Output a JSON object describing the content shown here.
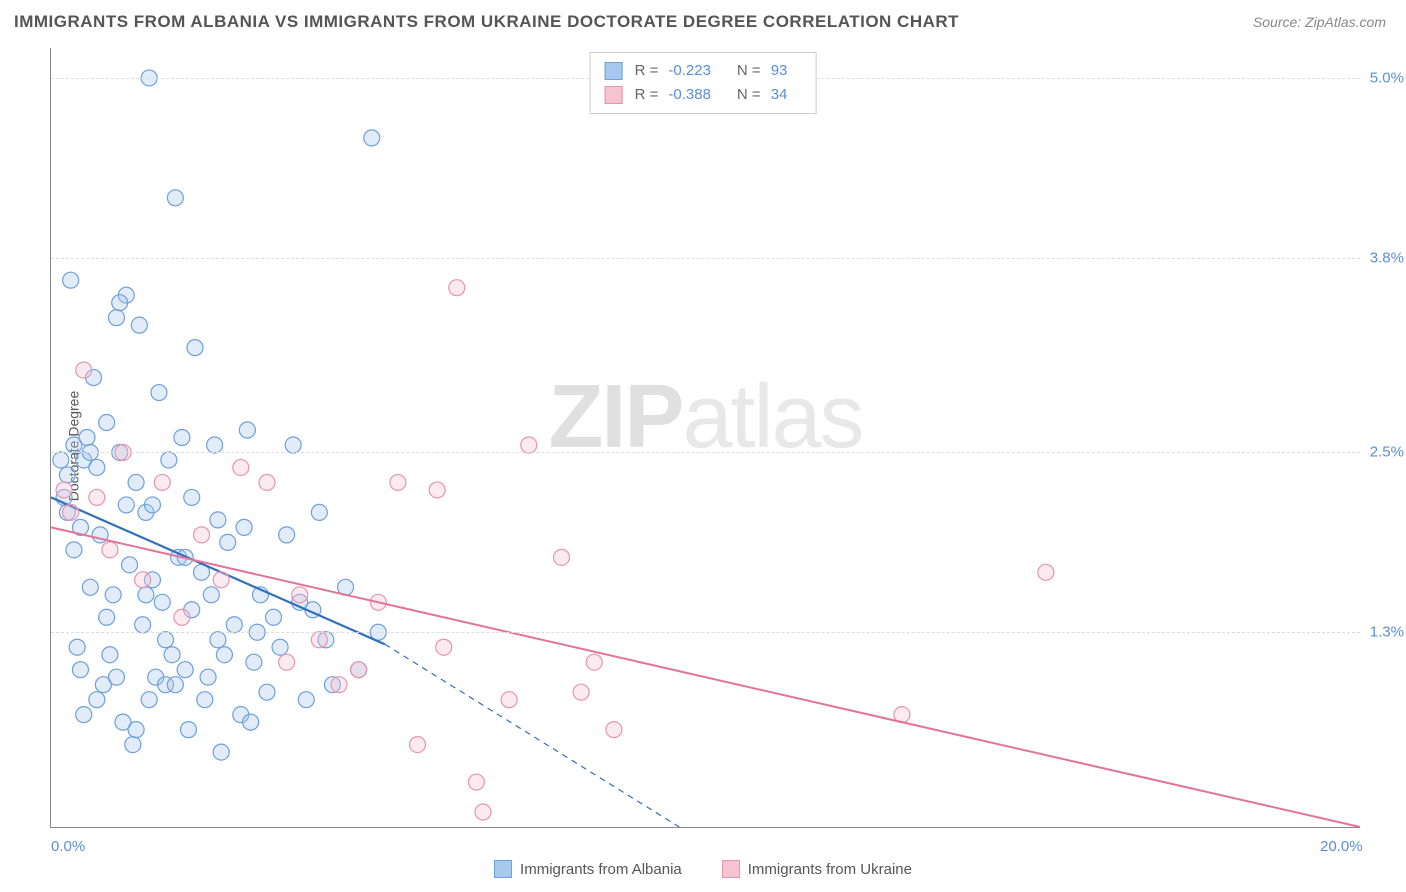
{
  "title": "IMMIGRANTS FROM ALBANIA VS IMMIGRANTS FROM UKRAINE DOCTORATE DEGREE CORRELATION CHART",
  "source": "Source: ZipAtlas.com",
  "watermark": {
    "zip": "ZIP",
    "atlas": "atlas"
  },
  "chart": {
    "type": "scatter",
    "y_axis_title": "Doctorate Degree",
    "xlim": [
      0.0,
      20.0
    ],
    "ylim": [
      0.0,
      5.2
    ],
    "x_ticks": [
      {
        "value": 0.0,
        "label": "0.0%"
      },
      {
        "value": 20.0,
        "label": "20.0%"
      }
    ],
    "y_ticks": [
      {
        "value": 1.3,
        "label": "1.3%"
      },
      {
        "value": 2.5,
        "label": "2.5%"
      },
      {
        "value": 3.8,
        "label": "3.8%"
      },
      {
        "value": 5.0,
        "label": "5.0%"
      }
    ],
    "background_color": "#ffffff",
    "grid_color": "#dddddd",
    "marker_radius": 8,
    "marker_fill_opacity": 0.35,
    "marker_stroke_width": 1.2,
    "series": [
      {
        "name": "Immigrants from Albania",
        "color_fill": "#a8c8ec",
        "color_stroke": "#6da0dd",
        "R": "-0.223",
        "N": "93",
        "trend": {
          "x1": 0.0,
          "y1": 2.2,
          "x2_solid": 5.1,
          "y2_solid": 1.22,
          "x2_dash": 9.6,
          "y2_dash": 0.0,
          "stroke": "#2f6fc0",
          "width": 2.2
        },
        "points": [
          [
            0.15,
            2.45
          ],
          [
            0.2,
            2.2
          ],
          [
            0.25,
            2.35
          ],
          [
            0.25,
            2.1
          ],
          [
            0.3,
            3.65
          ],
          [
            0.35,
            2.55
          ],
          [
            0.4,
            1.2
          ],
          [
            0.45,
            1.05
          ],
          [
            0.5,
            2.45
          ],
          [
            0.5,
            0.75
          ],
          [
            0.55,
            2.6
          ],
          [
            0.6,
            1.6
          ],
          [
            0.65,
            3.0
          ],
          [
            0.7,
            2.4
          ],
          [
            0.75,
            1.95
          ],
          [
            0.8,
            0.95
          ],
          [
            0.85,
            2.7
          ],
          [
            0.9,
            1.15
          ],
          [
            0.95,
            1.55
          ],
          [
            1.0,
            3.4
          ],
          [
            1.0,
            1.0
          ],
          [
            1.05,
            2.5
          ],
          [
            1.1,
            0.7
          ],
          [
            1.15,
            3.55
          ],
          [
            1.2,
            1.75
          ],
          [
            1.25,
            0.55
          ],
          [
            1.3,
            2.3
          ],
          [
            1.35,
            3.35
          ],
          [
            1.4,
            1.35
          ],
          [
            1.45,
            2.1
          ],
          [
            1.5,
            5.0
          ],
          [
            1.5,
            0.85
          ],
          [
            1.55,
            1.65
          ],
          [
            1.6,
            1.0
          ],
          [
            1.65,
            2.9
          ],
          [
            1.7,
            1.5
          ],
          [
            1.75,
            0.95
          ],
          [
            1.8,
            2.45
          ],
          [
            1.85,
            1.15
          ],
          [
            1.9,
            4.2
          ],
          [
            1.95,
            1.8
          ],
          [
            2.0,
            2.6
          ],
          [
            2.05,
            1.05
          ],
          [
            2.1,
            0.65
          ],
          [
            2.15,
            1.45
          ],
          [
            2.2,
            3.2
          ],
          [
            2.3,
            1.7
          ],
          [
            2.4,
            1.0
          ],
          [
            2.5,
            2.55
          ],
          [
            2.55,
            1.25
          ],
          [
            2.6,
            0.5
          ],
          [
            2.7,
            1.9
          ],
          [
            2.8,
            1.35
          ],
          [
            2.9,
            0.75
          ],
          [
            3.0,
            2.65
          ],
          [
            3.1,
            1.1
          ],
          [
            3.2,
            1.55
          ],
          [
            3.3,
            0.9
          ],
          [
            3.4,
            1.4
          ],
          [
            3.5,
            1.2
          ],
          [
            3.6,
            1.95
          ],
          [
            3.7,
            2.55
          ],
          [
            3.8,
            1.5
          ],
          [
            3.9,
            0.85
          ],
          [
            4.0,
            1.45
          ],
          [
            4.1,
            2.1
          ],
          [
            4.2,
            1.25
          ],
          [
            4.3,
            0.95
          ],
          [
            4.5,
            1.6
          ],
          [
            4.7,
            1.05
          ],
          [
            4.9,
            4.6
          ],
          [
            5.0,
            1.3
          ],
          [
            1.05,
            3.5
          ],
          [
            0.45,
            2.0
          ],
          [
            0.6,
            2.5
          ],
          [
            0.85,
            1.4
          ],
          [
            1.3,
            0.65
          ],
          [
            1.55,
            2.15
          ],
          [
            1.9,
            0.95
          ],
          [
            2.15,
            2.2
          ],
          [
            2.45,
            1.55
          ],
          [
            2.65,
            1.15
          ],
          [
            2.95,
            2.0
          ],
          [
            3.15,
            1.3
          ],
          [
            0.35,
            1.85
          ],
          [
            0.7,
            0.85
          ],
          [
            1.15,
            2.15
          ],
          [
            1.45,
            1.55
          ],
          [
            1.75,
            1.25
          ],
          [
            2.05,
            1.8
          ],
          [
            2.35,
            0.85
          ],
          [
            2.55,
            2.05
          ],
          [
            3.05,
            0.7
          ]
        ]
      },
      {
        "name": "Immigrants from Ukraine",
        "color_fill": "#f4c4d0",
        "color_stroke": "#e994ad",
        "R": "-0.388",
        "N": "34",
        "trend": {
          "x1": 0.0,
          "y1": 2.0,
          "x2_solid": 20.0,
          "y2_solid": 0.0,
          "x2_dash": 20.0,
          "y2_dash": 0.0,
          "stroke": "#e57399",
          "width": 2.0
        },
        "points": [
          [
            0.2,
            2.25
          ],
          [
            0.3,
            2.1
          ],
          [
            0.5,
            3.05
          ],
          [
            0.7,
            2.2
          ],
          [
            0.9,
            1.85
          ],
          [
            1.1,
            2.5
          ],
          [
            1.4,
            1.65
          ],
          [
            1.7,
            2.3
          ],
          [
            2.0,
            1.4
          ],
          [
            2.3,
            1.95
          ],
          [
            2.6,
            1.65
          ],
          [
            2.9,
            2.4
          ],
          [
            3.3,
            2.3
          ],
          [
            3.6,
            1.1
          ],
          [
            3.8,
            1.55
          ],
          [
            4.1,
            1.25
          ],
          [
            4.4,
            0.95
          ],
          [
            4.7,
            1.05
          ],
          [
            5.0,
            1.5
          ],
          [
            5.3,
            2.3
          ],
          [
            5.6,
            0.55
          ],
          [
            5.9,
            2.25
          ],
          [
            6.2,
            3.6
          ],
          [
            6.5,
            0.3
          ],
          [
            6.6,
            0.1
          ],
          [
            7.0,
            0.85
          ],
          [
            7.3,
            2.55
          ],
          [
            7.8,
            1.8
          ],
          [
            8.1,
            0.9
          ],
          [
            8.3,
            1.1
          ],
          [
            8.6,
            0.65
          ],
          [
            13.0,
            0.75
          ],
          [
            15.2,
            1.7
          ],
          [
            6.0,
            1.2
          ]
        ]
      }
    ]
  }
}
